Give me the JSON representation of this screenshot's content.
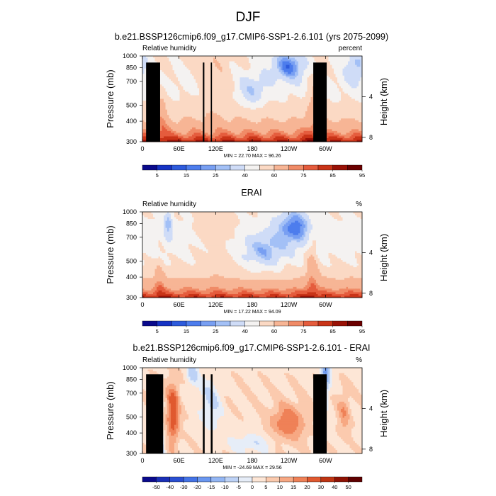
{
  "figure": {
    "title": "DJF"
  },
  "palettes": {
    "abs": [
      "#0a0a8c",
      "#1633c4",
      "#2e5bdc",
      "#4d7ded",
      "#789ff2",
      "#a3c0f6",
      "#cfdcf7",
      "#f4f2f1",
      "#fbd9c4",
      "#f7b595",
      "#f08b67",
      "#e55c3d",
      "#c93418",
      "#991106",
      "#6b0000"
    ],
    "diff": [
      "#0a0a8c",
      "#1a2fb6",
      "#2a4fd2",
      "#4473e6",
      "#6a97f0",
      "#93b6f4",
      "#bdd2f6",
      "#e6edf8",
      "#fde6d6",
      "#fbcaae",
      "#f7a883",
      "#ef8157",
      "#e0592f",
      "#bf3513",
      "#8e1204",
      "#5f0000"
    ]
  },
  "panels": [
    {
      "title": "b.e21.BSSP126cmip6.f09_g17.CMIP6-SSP1-2.6.101 (yrs 2075-2099)",
      "left_label": "Relative humidity",
      "right_label": "percent",
      "stats": "MIN = 22.70  MAX = 96.26",
      "colorbar_labels": [
        "5",
        "15",
        "25",
        "40",
        "60",
        "75",
        "85",
        "95"
      ]
    },
    {
      "title": "ERAI",
      "left_label": "Relative humidity",
      "right_label": "%",
      "stats": "MIN = 17.22  MAX = 94.09",
      "colorbar_labels": [
        "5",
        "15",
        "25",
        "40",
        "60",
        "75",
        "85",
        "95"
      ]
    },
    {
      "title": "b.e21.BSSP126cmip6.f09_g17.CMIP6-SSP1-2.6.101 - ERAI",
      "left_label": "Relative humidity",
      "right_label": "%",
      "stats": "MIN = -24.69  MAX = 29.56",
      "colorbar_labels": [
        "-50",
        "-40",
        "-30",
        "-20",
        "-15",
        "-10",
        "-5",
        "0",
        "5",
        "10",
        "15",
        "20",
        "30",
        "40",
        "50"
      ]
    }
  ],
  "axes": {
    "xlabel_ticks": [
      "0",
      "60E",
      "120E",
      "180",
      "120W",
      "60W"
    ],
    "ylabel": "Pressure (mb)",
    "ylabel_ticks": [
      "300",
      "400",
      "500",
      "700",
      "850",
      "1000"
    ],
    "y2label": "Height (km)",
    "y2label_ticks": [
      "8",
      "4"
    ]
  },
  "chart_data": [
    {
      "type": "heatmap",
      "title": "b.e21.BSSP126cmip6.f09_g17.CMIP6-SSP1-2.6.101 (yrs 2075-2099)",
      "variable": "Relative humidity",
      "units": "percent",
      "x_ticks": [
        "0",
        "60E",
        "120E",
        "180",
        "120W",
        "60W"
      ],
      "y_ticks_pressure_mb": [
        300,
        400,
        500,
        700,
        850,
        1000
      ],
      "y2_ticks_height_km": [
        8,
        4
      ],
      "contour_levels": [
        5,
        10,
        15,
        20,
        25,
        30,
        40,
        50,
        60,
        70,
        75,
        80,
        85,
        90,
        95
      ],
      "labeled_levels": [
        5,
        15,
        25,
        40,
        60,
        75,
        85,
        95
      ],
      "min": 22.7,
      "max": 96.26
    },
    {
      "type": "heatmap",
      "title": "ERAI",
      "variable": "Relative humidity",
      "units": "%",
      "x_ticks": [
        "0",
        "60E",
        "120E",
        "180",
        "120W",
        "60W"
      ],
      "y_ticks_pressure_mb": [
        300,
        400,
        500,
        700,
        850,
        1000
      ],
      "y2_ticks_height_km": [
        8,
        4
      ],
      "contour_levels": [
        5,
        10,
        15,
        20,
        25,
        30,
        40,
        50,
        60,
        70,
        75,
        80,
        85,
        90,
        95
      ],
      "labeled_levels": [
        5,
        15,
        25,
        40,
        60,
        75,
        85,
        95
      ],
      "min": 17.22,
      "max": 94.09
    },
    {
      "type": "heatmap",
      "title": "b.e21.BSSP126cmip6.f09_g17.CMIP6-SSP1-2.6.101 - ERAI",
      "variable": "Relative humidity",
      "units": "%",
      "x_ticks": [
        "0",
        "60E",
        "120E",
        "180",
        "120W",
        "60W"
      ],
      "y_ticks_pressure_mb": [
        300,
        400,
        500,
        700,
        850,
        1000
      ],
      "y2_ticks_height_km": [
        8,
        4
      ],
      "contour_levels": [
        -50,
        -40,
        -30,
        -20,
        -15,
        -10,
        -5,
        0,
        5,
        10,
        15,
        20,
        30,
        40,
        50
      ],
      "min": -24.69,
      "max": 29.56
    }
  ]
}
